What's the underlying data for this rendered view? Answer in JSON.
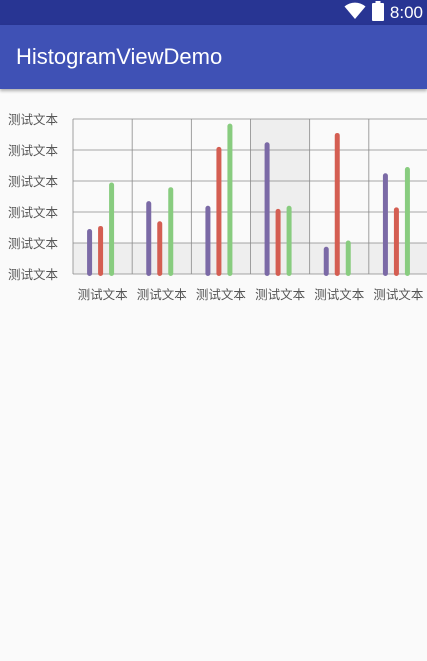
{
  "status_bar": {
    "time": "8:00",
    "wifi_icon": "wifi-icon",
    "battery_icon": "battery-icon",
    "background_color": "#283593"
  },
  "app_bar": {
    "title": "HistogramViewDemo",
    "background_color": "#3f51b5"
  },
  "chart_data": {
    "type": "bar",
    "title": "",
    "xlabel": "",
    "ylabel": "",
    "y_tick_labels": [
      "测试文本",
      "测试文本",
      "测试文本",
      "测试文本",
      "测试文本",
      "测试文本"
    ],
    "categories": [
      "测试文本",
      "测试文本",
      "测试文本",
      "测试文本",
      "测试文本",
      "测试文本"
    ],
    "ylim": [
      0,
      5
    ],
    "grid": true,
    "highlighted_category_index": 3,
    "series": [
      {
        "color": "#7b6aa6",
        "values": [
          1.45,
          2.35,
          2.2,
          4.25,
          0.88,
          3.25
        ]
      },
      {
        "color": "#d45e52",
        "values": [
          1.55,
          1.7,
          4.1,
          2.1,
          4.55,
          2.15
        ]
      },
      {
        "color": "#88cc7f",
        "values": [
          2.95,
          2.8,
          4.85,
          2.2,
          1.08,
          3.45
        ]
      }
    ]
  }
}
